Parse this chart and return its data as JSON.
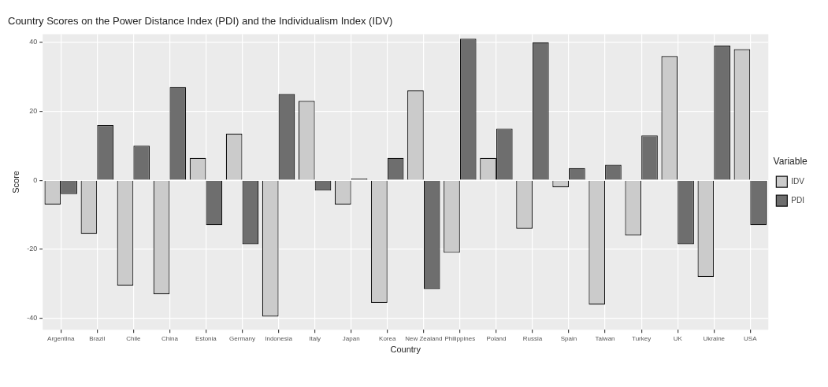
{
  "chart_data": {
    "type": "bar",
    "title": "Country Scores on the Power Distance Index (PDI) and the Individualism Index (IDV)",
    "xlabel": "Country",
    "ylabel": "Score",
    "legend_title": "Variable",
    "categories": [
      "Argentina",
      "Brazil",
      "Chile",
      "China",
      "Estonia",
      "Germany",
      "Indonesia",
      "Italy",
      "Japan",
      "Korea",
      "New Zealand",
      "Philippines",
      "Poland",
      "Russia",
      "Spain",
      "Taiwan",
      "Turkey",
      "UK",
      "Ukraine",
      "USA"
    ],
    "series": [
      {
        "name": "IDV",
        "color": "#cbcbcb",
        "values": [
          -7,
          -15.5,
          -30.5,
          -33,
          6.5,
          13.5,
          -39.5,
          23,
          -7,
          -35.5,
          26,
          -21,
          6.5,
          -14,
          -2,
          -36,
          -16,
          36,
          -28,
          38
        ]
      },
      {
        "name": "PDI",
        "color": "#6e6e6e",
        "values": [
          -4,
          16,
          10,
          27,
          -13,
          -18.5,
          25,
          -3,
          0.5,
          6.5,
          -31.5,
          41,
          15,
          40,
          3.5,
          4.5,
          13,
          -18.5,
          39,
          -13
        ]
      }
    ],
    "ylim": [
      -43.3,
      42.3
    ],
    "yticks": [
      -40,
      -20,
      0,
      20,
      40
    ],
    "grid": true,
    "legend": "right"
  }
}
